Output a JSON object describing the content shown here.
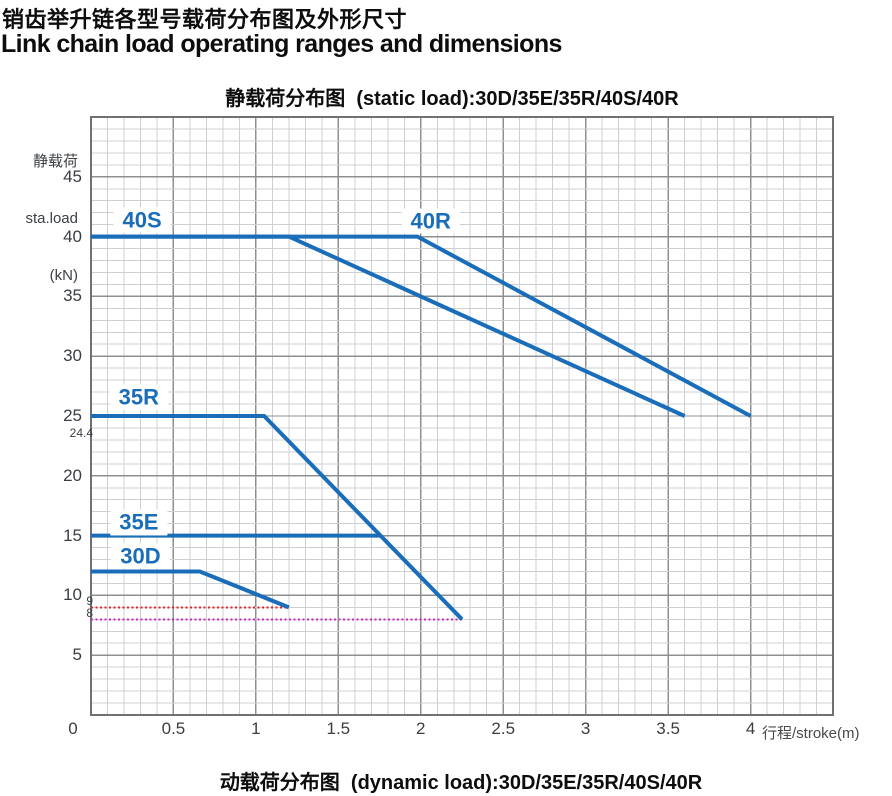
{
  "page": {
    "title_zh": "销齿举升链各型号载荷分布图及外形尺寸",
    "title_en": "Link chain load operating ranges and dimensions",
    "dynamic_chart_title": "动载荷分布图  (dynamic load):30D/35E/35R/40S/40R"
  },
  "chart_data": {
    "type": "line",
    "title": "静载荷分布图  (static load):30D/35E/35R/40S/40R",
    "xlabel": "行程/stroke(m)",
    "ylabel_lines": [
      "静载荷",
      "sta.load",
      "(kN)"
    ],
    "xlim": [
      0,
      4.5
    ],
    "ylim": [
      0,
      50
    ],
    "x_ticks": [
      0,
      0.5,
      1,
      1.5,
      2,
      2.5,
      3,
      3.5,
      4
    ],
    "y_ticks": [
      5,
      10,
      15,
      20,
      25,
      30,
      35,
      40,
      45
    ],
    "grid": {
      "on": true,
      "minor_x": 0.1,
      "minor_y": 1,
      "major_x": 0.5,
      "major_y": 5
    },
    "legend_position": "inline-labels",
    "accent_color": "#1a6db8",
    "series": [
      {
        "name": "40S",
        "color": "#1a6db8",
        "points": [
          [
            0,
            40
          ],
          [
            1.2,
            40
          ],
          [
            3.6,
            25
          ]
        ],
        "label_pos": [
          0.31,
          41.4
        ]
      },
      {
        "name": "40R",
        "color": "#1a6db8",
        "points": [
          [
            0,
            40
          ],
          [
            1.98,
            40
          ],
          [
            4.0,
            25
          ]
        ],
        "label_pos": [
          2.06,
          41.3
        ]
      },
      {
        "name": "35R",
        "color": "#1a6db8",
        "points": [
          [
            0,
            25
          ],
          [
            1.05,
            25
          ],
          [
            2.25,
            8
          ]
        ],
        "label_pos": [
          0.29,
          26.6
        ]
      },
      {
        "name": "35E",
        "color": "#1a6db8",
        "points": [
          [
            0,
            15
          ],
          [
            1.76,
            15
          ]
        ],
        "label_pos": [
          0.29,
          16.1
        ]
      },
      {
        "name": "30D",
        "color": "#1a6db8",
        "points": [
          [
            0,
            12
          ],
          [
            0.66,
            12
          ],
          [
            1.2,
            9
          ]
        ],
        "label_pos": [
          0.3,
          13.3
        ]
      }
    ],
    "reference_lines": [
      {
        "label": "9",
        "value": 9,
        "x_start": 0,
        "x_end": 1.2,
        "color": "#e0262d",
        "style": "dotted",
        "label_dy": -6
      },
      {
        "label": "8",
        "value": 8,
        "x_start": 0,
        "x_end": 2.25,
        "color": "#cb2ac0",
        "style": "dotted",
        "label_dy": -6
      }
    ],
    "extra_y_labels": [
      {
        "text": "24.4",
        "value": 24.4,
        "label_dy": 10
      }
    ]
  }
}
